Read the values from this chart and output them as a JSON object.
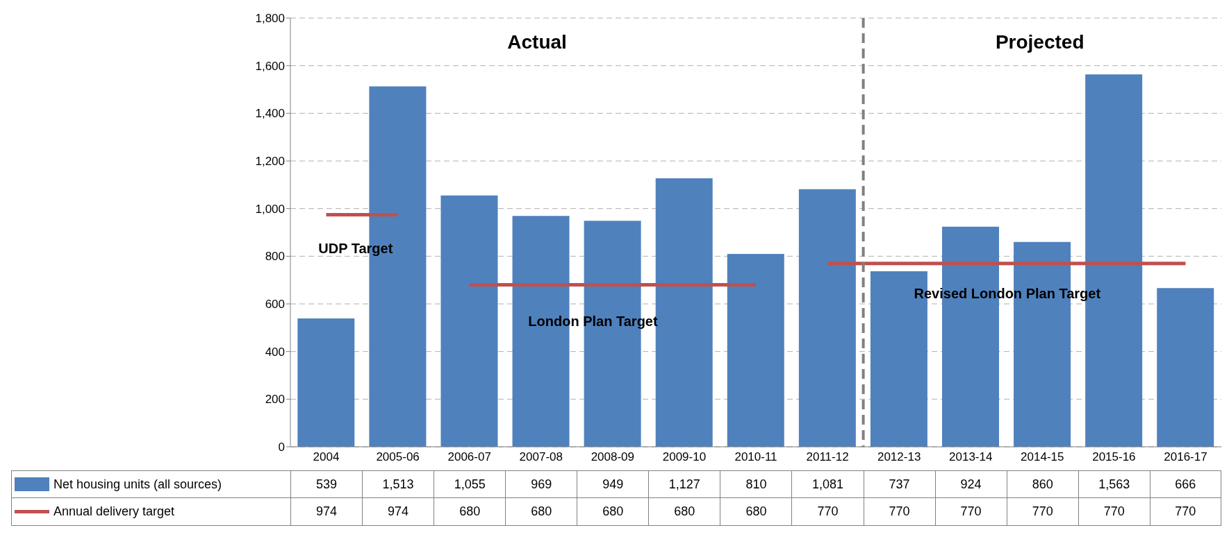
{
  "chart_data": {
    "type": "bar",
    "categories": [
      "2004",
      "2005-06",
      "2006-07",
      "2007-08",
      "2008-09",
      "2009-10",
      "2010-11",
      "2011-12",
      "2012-13",
      "2013-14",
      "2014-15",
      "2015-16",
      "2016-17"
    ],
    "series": [
      {
        "name": "Net housing units (all sources)",
        "type": "bar",
        "color": "#4f81bd",
        "values": [
          539,
          1513,
          1055,
          969,
          949,
          1127,
          810,
          1081,
          737,
          924,
          860,
          1563,
          666
        ],
        "value_labels": [
          "539",
          "1,513",
          "1,055",
          "969",
          "949",
          "1,127",
          "810",
          "1,081",
          "737",
          "924",
          "860",
          "1,563",
          "666"
        ]
      },
      {
        "name": "Annual delivery target",
        "type": "line",
        "color": "#c0504d",
        "line_style": "solid",
        "values": [
          974,
          974,
          680,
          680,
          680,
          680,
          680,
          770,
          770,
          770,
          770,
          770,
          770
        ],
        "value_labels": [
          "974",
          "974",
          "680",
          "680",
          "680",
          "680",
          "680",
          "770",
          "770",
          "770",
          "770",
          "770",
          "770"
        ]
      }
    ],
    "ylim": [
      0,
      1800
    ],
    "yticks": [
      0,
      200,
      400,
      600,
      800,
      {
        "value": 1000,
        "label": "1,000"
      },
      {
        "value": 1200,
        "label": "1,200"
      },
      {
        "value": 1400,
        "label": "1,400"
      },
      {
        "value": 1600,
        "label": "1,600"
      },
      {
        "value": 1800,
        "label": "1,800"
      }
    ],
    "grid": "y",
    "legend": "bottom",
    "marker": "none",
    "ref_lines": [
      {
        "axis": "x",
        "value": "2012-13",
        "color": "#808080",
        "line_style": "dashed"
      }
    ],
    "annotations": [
      "Actual",
      "Projected",
      "UDP Target",
      "London Plan Target",
      "Revised London Plan Target"
    ]
  }
}
